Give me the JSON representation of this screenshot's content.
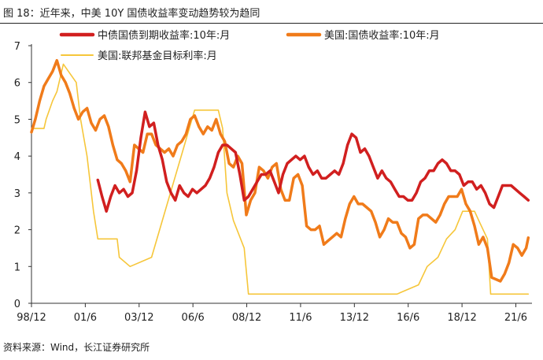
{
  "title": "图 18：近年来，中美 10Y 国债收益率变动趋势较为趋同",
  "source": "资料来源：Wind，长江证券研究所",
  "colors": {
    "cn": "#d11f1f",
    "us": "#f07b1a",
    "fed": "#f6c63a",
    "axis": "#333333",
    "text": "#222222"
  },
  "chart_data": {
    "type": "line",
    "title": "图 18：近年来，中美 10Y 国债收益率变动趋势较为趋同",
    "xlabel": "",
    "ylabel": "",
    "xlim": [
      1998.92,
      2022.17
    ],
    "ylim": [
      0,
      7
    ],
    "yticks": [
      "0",
      "1",
      "2",
      "3",
      "4",
      "5",
      "6",
      "7"
    ],
    "xticks": [
      {
        "label": "98/12",
        "x": 1998.92
      },
      {
        "label": "01/6",
        "x": 2001.42
      },
      {
        "label": "03/12",
        "x": 2003.92
      },
      {
        "label": "06/6",
        "x": 2006.42
      },
      {
        "label": "08/12",
        "x": 2008.92
      },
      {
        "label": "11/6",
        "x": 2011.42
      },
      {
        "label": "13/12",
        "x": 2013.92
      },
      {
        "label": "16/6",
        "x": 2016.42
      },
      {
        "label": "18/12",
        "x": 2018.92
      },
      {
        "label": "21/6",
        "x": 2021.42
      }
    ],
    "grid": false,
    "legend_position": "top",
    "series": [
      {
        "name": "中债国债到期收益率:10年:月",
        "color": "#d11f1f",
        "x": [
          2002.0,
          2002.2,
          2002.4,
          2002.6,
          2002.8,
          2003.0,
          2003.2,
          2003.4,
          2003.6,
          2003.8,
          2004.0,
          2004.2,
          2004.4,
          2004.6,
          2004.8,
          2005.0,
          2005.2,
          2005.4,
          2005.6,
          2005.8,
          2006.0,
          2006.2,
          2006.4,
          2006.6,
          2006.8,
          2007.0,
          2007.2,
          2007.4,
          2007.6,
          2007.8,
          2008.0,
          2008.2,
          2008.4,
          2008.6,
          2008.8,
          2009.0,
          2009.2,
          2009.4,
          2009.6,
          2009.8,
          2010.0,
          2010.2,
          2010.4,
          2010.6,
          2010.8,
          2011.0,
          2011.2,
          2011.4,
          2011.6,
          2011.8,
          2012.0,
          2012.2,
          2012.4,
          2012.6,
          2012.8,
          2013.0,
          2013.2,
          2013.4,
          2013.6,
          2013.8,
          2014.0,
          2014.2,
          2014.4,
          2014.6,
          2014.8,
          2015.0,
          2015.2,
          2015.4,
          2015.6,
          2015.8,
          2016.0,
          2016.2,
          2016.4,
          2016.6,
          2016.8,
          2017.0,
          2017.2,
          2017.4,
          2017.6,
          2017.8,
          2018.0,
          2018.2,
          2018.4,
          2018.6,
          2018.8,
          2019.0,
          2019.2,
          2019.4,
          2019.6,
          2019.8,
          2020.0,
          2020.2,
          2020.4,
          2020.6,
          2020.8,
          2021.0,
          2021.2,
          2021.4,
          2021.6,
          2021.8,
          2022.0
        ],
        "y": [
          3.35,
          2.9,
          2.5,
          2.9,
          3.2,
          3.0,
          3.1,
          2.9,
          3.0,
          3.6,
          4.5,
          5.2,
          4.8,
          4.9,
          4.3,
          3.9,
          3.3,
          3.0,
          2.8,
          3.2,
          3.0,
          2.9,
          3.1,
          3.0,
          3.1,
          3.2,
          3.4,
          3.7,
          4.1,
          4.3,
          4.3,
          4.2,
          4.1,
          3.5,
          2.8,
          2.9,
          3.1,
          3.3,
          3.5,
          3.5,
          3.6,
          3.3,
          3.0,
          3.5,
          3.8,
          3.9,
          4.0,
          3.9,
          4.0,
          3.7,
          3.5,
          3.6,
          3.4,
          3.4,
          3.5,
          3.6,
          3.5,
          3.8,
          4.3,
          4.6,
          4.5,
          4.1,
          4.2,
          4.0,
          3.7,
          3.4,
          3.6,
          3.4,
          3.3,
          3.1,
          2.9,
          2.9,
          2.8,
          2.8,
          3.0,
          3.3,
          3.4,
          3.6,
          3.6,
          3.8,
          3.9,
          3.8,
          3.6,
          3.6,
          3.5,
          3.2,
          3.3,
          3.3,
          3.1,
          3.2,
          3.0,
          2.7,
          2.6,
          2.9,
          3.2,
          3.2,
          3.2,
          3.1,
          3.0,
          2.9,
          2.8
        ]
      },
      {
        "name": "美国:国债收益率:10年:月",
        "color": "#f07b1a",
        "x": [
          1998.92,
          1999.1,
          1999.3,
          1999.5,
          1999.7,
          1999.9,
          2000.1,
          2000.3,
          2000.5,
          2000.7,
          2000.9,
          2001.1,
          2001.3,
          2001.5,
          2001.7,
          2001.9,
          2002.1,
          2002.3,
          2002.5,
          2002.7,
          2002.9,
          2003.1,
          2003.3,
          2003.5,
          2003.7,
          2003.9,
          2004.1,
          2004.3,
          2004.5,
          2004.7,
          2004.9,
          2005.1,
          2005.3,
          2005.5,
          2005.7,
          2005.9,
          2006.1,
          2006.3,
          2006.5,
          2006.7,
          2006.9,
          2007.1,
          2007.3,
          2007.5,
          2007.7,
          2007.9,
          2008.1,
          2008.3,
          2008.5,
          2008.7,
          2008.9,
          2009.1,
          2009.3,
          2009.5,
          2009.7,
          2009.9,
          2010.1,
          2010.3,
          2010.5,
          2010.7,
          2010.9,
          2011.1,
          2011.3,
          2011.5,
          2011.7,
          2011.9,
          2012.1,
          2012.3,
          2012.5,
          2012.7,
          2012.9,
          2013.1,
          2013.3,
          2013.5,
          2013.7,
          2013.9,
          2014.1,
          2014.3,
          2014.5,
          2014.7,
          2014.9,
          2015.1,
          2015.3,
          2015.5,
          2015.7,
          2015.9,
          2016.1,
          2016.3,
          2016.5,
          2016.7,
          2016.9,
          2017.1,
          2017.3,
          2017.5,
          2017.7,
          2017.9,
          2018.1,
          2018.3,
          2018.5,
          2018.7,
          2018.9,
          2019.1,
          2019.3,
          2019.5,
          2019.7,
          2019.9,
          2020.1,
          2020.3,
          2020.5,
          2020.7,
          2020.9,
          2021.1,
          2021.3,
          2021.5,
          2021.7,
          2021.9,
          2022.0
        ],
        "y": [
          4.65,
          5.0,
          5.5,
          5.9,
          6.1,
          6.3,
          6.6,
          6.2,
          6.0,
          5.7,
          5.3,
          5.0,
          5.2,
          5.3,
          4.9,
          4.7,
          5.0,
          5.1,
          4.8,
          4.3,
          3.9,
          3.8,
          3.6,
          3.3,
          4.3,
          4.2,
          4.1,
          4.6,
          4.6,
          4.3,
          4.2,
          4.1,
          4.2,
          4.0,
          4.3,
          4.4,
          4.6,
          5.0,
          5.1,
          4.8,
          4.6,
          4.8,
          4.7,
          5.0,
          4.6,
          4.4,
          3.8,
          3.7,
          4.0,
          3.8,
          2.4,
          2.8,
          3.0,
          3.7,
          3.6,
          3.4,
          3.7,
          3.8,
          3.1,
          2.8,
          2.8,
          3.4,
          3.5,
          3.2,
          2.1,
          2.0,
          2.0,
          2.1,
          1.6,
          1.7,
          1.8,
          1.9,
          1.8,
          2.3,
          2.7,
          2.9,
          2.7,
          2.7,
          2.6,
          2.5,
          2.2,
          1.8,
          2.0,
          2.3,
          2.2,
          2.2,
          1.9,
          1.8,
          1.5,
          1.6,
          2.3,
          2.4,
          2.4,
          2.3,
          2.2,
          2.4,
          2.7,
          2.9,
          2.9,
          2.9,
          3.1,
          2.7,
          2.5,
          2.1,
          1.6,
          1.8,
          1.5,
          0.7,
          0.65,
          0.6,
          0.8,
          1.1,
          1.6,
          1.5,
          1.3,
          1.5,
          1.78
        ]
      },
      {
        "name": "美国:联邦基金目标利率:月",
        "color": "#f6c63a",
        "x": [
          1998.92,
          1999.5,
          1999.6,
          1999.9,
          2000.1,
          2000.4,
          2001.0,
          2001.2,
          2001.5,
          2001.8,
          2002.0,
          2002.9,
          2003.0,
          2003.5,
          2004.5,
          2005.0,
          2005.5,
          2006.0,
          2006.5,
          2007.6,
          2007.8,
          2008.0,
          2008.3,
          2008.8,
          2009.0,
          2015.9,
          2016.9,
          2017.3,
          2017.8,
          2018.2,
          2018.6,
          2018.95,
          2019.5,
          2019.7,
          2020.1,
          2020.25,
          2022.0
        ],
        "y": [
          4.75,
          4.75,
          5.0,
          5.5,
          5.75,
          6.5,
          6.0,
          5.0,
          4.0,
          2.5,
          1.75,
          1.75,
          1.25,
          1.0,
          1.25,
          2.25,
          3.25,
          4.25,
          5.25,
          5.25,
          4.75,
          3.0,
          2.25,
          1.5,
          0.25,
          0.25,
          0.5,
          1.0,
          1.25,
          1.75,
          2.0,
          2.5,
          2.5,
          2.25,
          1.75,
          0.25,
          0.25
        ]
      }
    ]
  }
}
